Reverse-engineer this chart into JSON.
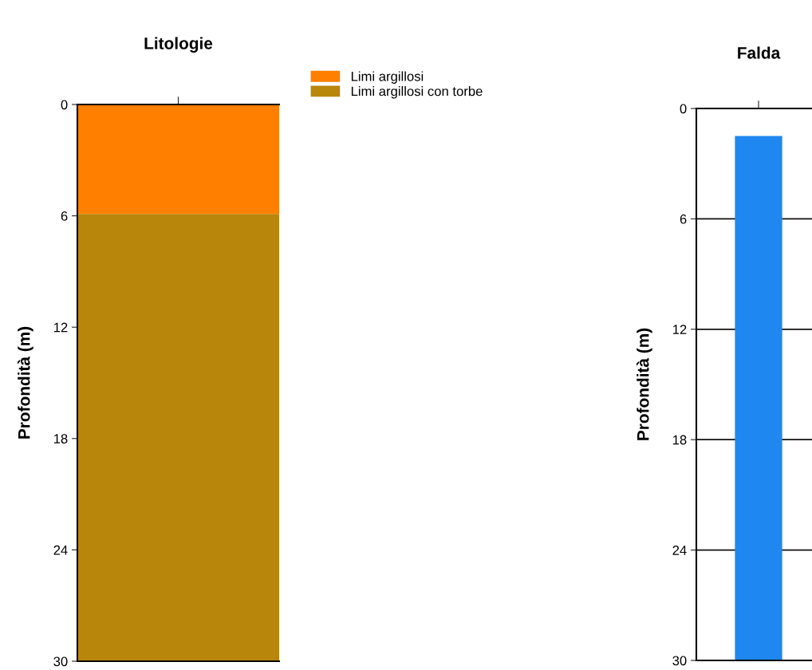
{
  "chart_data": [
    {
      "type": "bar",
      "title": "Litologie",
      "ylabel": "Profondità (m)",
      "categories": [
        null
      ],
      "stacked": true,
      "ylim": [
        30,
        0
      ],
      "yticks": [
        0,
        6,
        12,
        18,
        24,
        30
      ],
      "legend": "right",
      "grid": false,
      "series": [
        {
          "name": "Limi argillosi",
          "color": "#ff8000",
          "values": [
            5.9
          ]
        },
        {
          "name": "Limi argillosi con torbe",
          "color": "#b8860b",
          "values": [
            24.1
          ]
        }
      ]
    },
    {
      "type": "bar",
      "title": "Falda",
      "ylabel": "Profondità (m)",
      "categories": [
        null
      ],
      "ylim": [
        30,
        0
      ],
      "yticks": [
        0,
        6,
        12,
        18,
        24,
        30
      ],
      "grid": "y",
      "series": [
        {
          "color": "#1e88f0",
          "values": [
            28.5
          ],
          "base": [
            1.5
          ]
        }
      ]
    }
  ]
}
